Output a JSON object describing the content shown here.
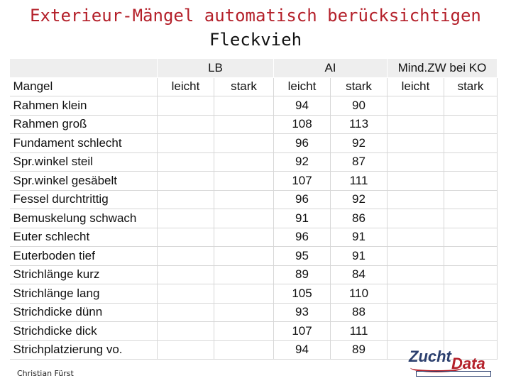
{
  "title_line1": "Exterieur-Mängel automatisch berücksichtigen",
  "title_line2": "Fleckvieh",
  "groups": {
    "lb": "LB",
    "al": "AI",
    "mind": "Mind.ZW bei KO"
  },
  "header": {
    "mangel": "Mangel",
    "leicht": "leicht",
    "stark": "stark"
  },
  "rows": [
    {
      "name": "Rahmen klein",
      "al_leicht": "94",
      "al_stark": "90"
    },
    {
      "name": "Rahmen groß",
      "al_leicht": "108",
      "al_stark": "113"
    },
    {
      "name": "Fundament schlecht",
      "al_leicht": "96",
      "al_stark": "92"
    },
    {
      "name": "Spr.winkel steil",
      "al_leicht": "92",
      "al_stark": "87"
    },
    {
      "name": "Spr.winkel gesäbelt",
      "al_leicht": "107",
      "al_stark": "111"
    },
    {
      "name": "Fessel durchtrittig",
      "al_leicht": "96",
      "al_stark": "92"
    },
    {
      "name": "Bemuskelung schwach",
      "al_leicht": "91",
      "al_stark": "86"
    },
    {
      "name": "Euter schlecht",
      "al_leicht": "96",
      "al_stark": "91"
    },
    {
      "name": "Euterboden tief",
      "al_leicht": "95",
      "al_stark": "91"
    },
    {
      "name": "Strichlänge kurz",
      "al_leicht": "89",
      "al_stark": "84"
    },
    {
      "name": "Strichlänge lang",
      "al_leicht": "105",
      "al_stark": "110"
    },
    {
      "name": "Strichdicke dünn",
      "al_leicht": "93",
      "al_stark": "88"
    },
    {
      "name": "Strichdicke dick",
      "al_leicht": "107",
      "al_stark": "111"
    },
    {
      "name": "Strichplatzierung vo.",
      "al_leicht": "94",
      "al_stark": "89"
    }
  ],
  "footer_author": "Christian Fürst",
  "logo": {
    "word1": "Zucht",
    "word2": "Data"
  },
  "colors": {
    "title": "#b4202a",
    "header_bg": "#eeeeee",
    "logo_blue": "#2b3f6e"
  }
}
